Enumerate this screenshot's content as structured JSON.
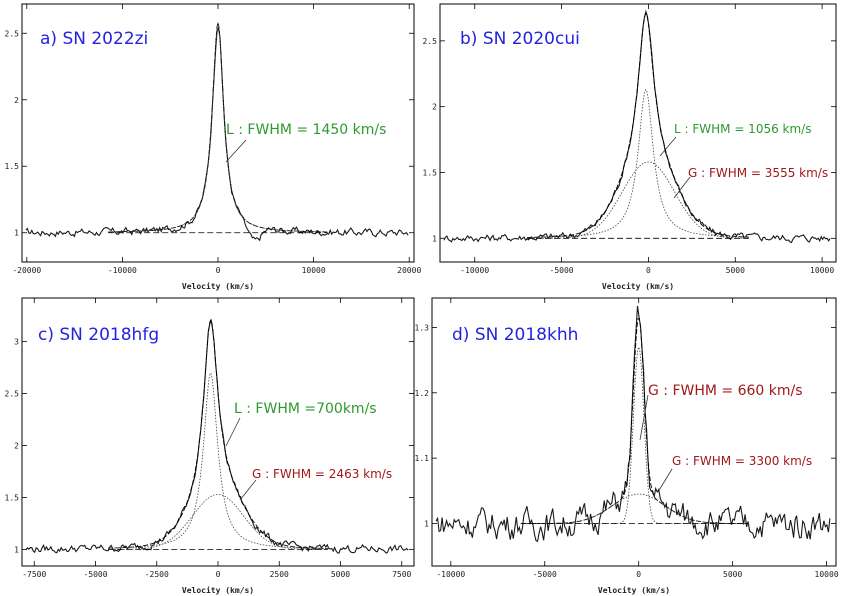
{
  "chart_data": [
    {
      "type": "line",
      "title": "a) SN 2022zi",
      "xlabel": "Velocity (km/s)",
      "xlim": [
        -20500,
        20500
      ],
      "ylim": [
        0.78,
        2.72
      ],
      "xticks": [
        -20000,
        -10000,
        0,
        10000,
        20000
      ],
      "yticks": [
        1,
        1.5,
        2,
        2.5
      ],
      "peak": 2.58,
      "components": [
        {
          "label": "L : FWHM = 1450 km/s",
          "kind": "L",
          "center": 0,
          "fwhm": 1450,
          "amp": 1.58,
          "color": "#2e9a2e"
        }
      ]
    },
    {
      "type": "line",
      "title": "b) SN 2020cui",
      "xlabel": "Velocity (km/s)",
      "xlim": [
        -12000,
        10800
      ],
      "ylim": [
        0.82,
        2.78
      ],
      "xticks": [
        -10000,
        -5000,
        0,
        5000,
        10000
      ],
      "yticks": [
        1,
        1.5,
        2,
        2.5
      ],
      "peak": 2.73,
      "components": [
        {
          "label": "L : FWHM = 1056 km/s",
          "kind": "L",
          "center": -150,
          "fwhm": 1056,
          "amp": 1.13,
          "color": "#2e9a2e"
        },
        {
          "label": "G : FWHM = 3555 km/s",
          "kind": "G",
          "center": 0,
          "fwhm": 3555,
          "amp": 0.58,
          "color": "#a01818"
        }
      ]
    },
    {
      "type": "line",
      "title": "c) SN 2018hfg",
      "xlabel": "Velocity (km/s)",
      "xlim": [
        -8000,
        8000
      ],
      "ylim": [
        0.84,
        3.42
      ],
      "xticks": [
        -7500,
        -5000,
        -2500,
        0,
        2500,
        5000,
        7500
      ],
      "yticks": [
        1,
        1.5,
        2,
        2.5,
        3
      ],
      "peak": 3.2,
      "components": [
        {
          "label": "L : FWHM =700km/s",
          "kind": "L",
          "center": -300,
          "fwhm": 700,
          "amp": 1.7,
          "color": "#2e9a2e"
        },
        {
          "label": "G : FWHM = 2463 km/s",
          "kind": "G",
          "center": 0,
          "fwhm": 2463,
          "amp": 0.53,
          "color": "#a01818"
        }
      ]
    },
    {
      "type": "line",
      "title": "d) SN 2018khh",
      "xlabel": "Velocity (km/s)",
      "xlim": [
        -11000,
        10500
      ],
      "ylim": [
        0.935,
        1.345
      ],
      "xticks": [
        -10000,
        -5000,
        0,
        5000,
        10000
      ],
      "yticks": [
        1,
        1.1,
        1.2,
        1.3
      ],
      "peak": 1.33,
      "components": [
        {
          "label": "G : FWHM = 660 km/s",
          "kind": "G",
          "center": 0,
          "fwhm": 660,
          "amp": 0.27,
          "color": "#a01818"
        },
        {
          "label": "G : FWHM = 3300 km/s",
          "kind": "G",
          "center": 0,
          "fwhm": 3300,
          "amp": 0.045,
          "color": "#a01818"
        }
      ]
    }
  ]
}
